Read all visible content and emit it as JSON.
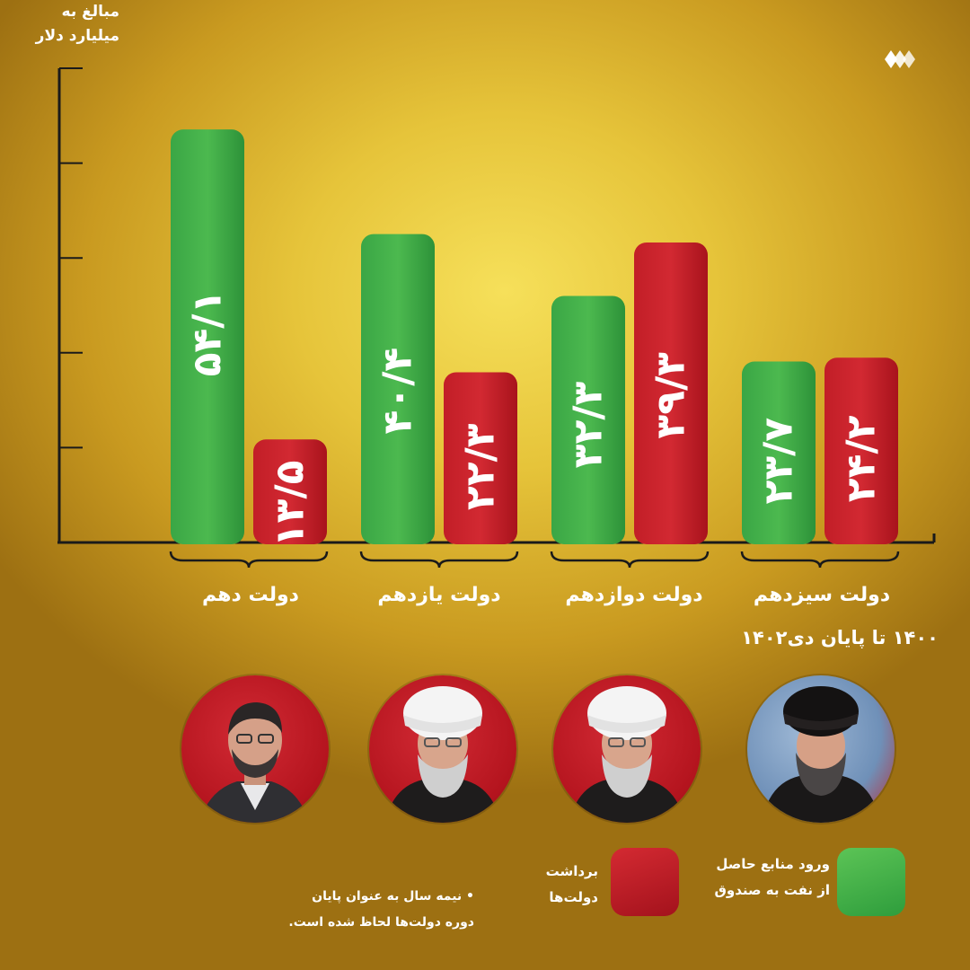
{
  "chart_data": {
    "type": "bar",
    "ylabel_lines": [
      "مبالغ به",
      "میلیارد دلار"
    ],
    "categories": [
      "دولت دهم",
      "دولت یازدهم",
      "دولت دوازدهم",
      "دولت سیزدهم"
    ],
    "series": [
      {
        "name": "ورود منابع حاصل از نفت به صندوق",
        "values": [
          54.1,
          40.4,
          32.3,
          23.7
        ],
        "labels": [
          "۵۴/۱",
          "۴۰/۴",
          "۳۲/۳",
          "۲۳/۷"
        ],
        "color": "#2f9e3d"
      },
      {
        "name": "برداشت دولت‌ها",
        "values": [
          13.5,
          22.3,
          39.3,
          24.2
        ],
        "labels": [
          "۱۳/۵",
          "۲۲/۳",
          "۳۹/۳",
          "۲۴/۲"
        ],
        "color": "#b8161f"
      }
    ],
    "ylim": [
      0,
      60
    ],
    "grid": false,
    "legend_position": "bottom-right",
    "period_note": "۱۴۰۰ تا پایان دی۱۴۰۲"
  },
  "legend": {
    "green_lines": [
      "ورود منابع حاصل",
      "از نفت به صندوق"
    ],
    "red_lines": [
      "برداشت",
      "دولت‌ها"
    ]
  },
  "footnote_lines": [
    "• نیمه سال به عنوان پایان",
    "دوره دولت‌ها لحاظ شده است."
  ],
  "portraits": [
    "president-portrait-10th",
    "president-portrait-11th",
    "president-portrait-12th",
    "president-portrait-13th"
  ],
  "colors": {
    "green": "#2f9e3d",
    "red": "#b8161f",
    "background": "#d9a82a",
    "text": "#ffffff"
  },
  "icons": [
    "logo-icon"
  ]
}
